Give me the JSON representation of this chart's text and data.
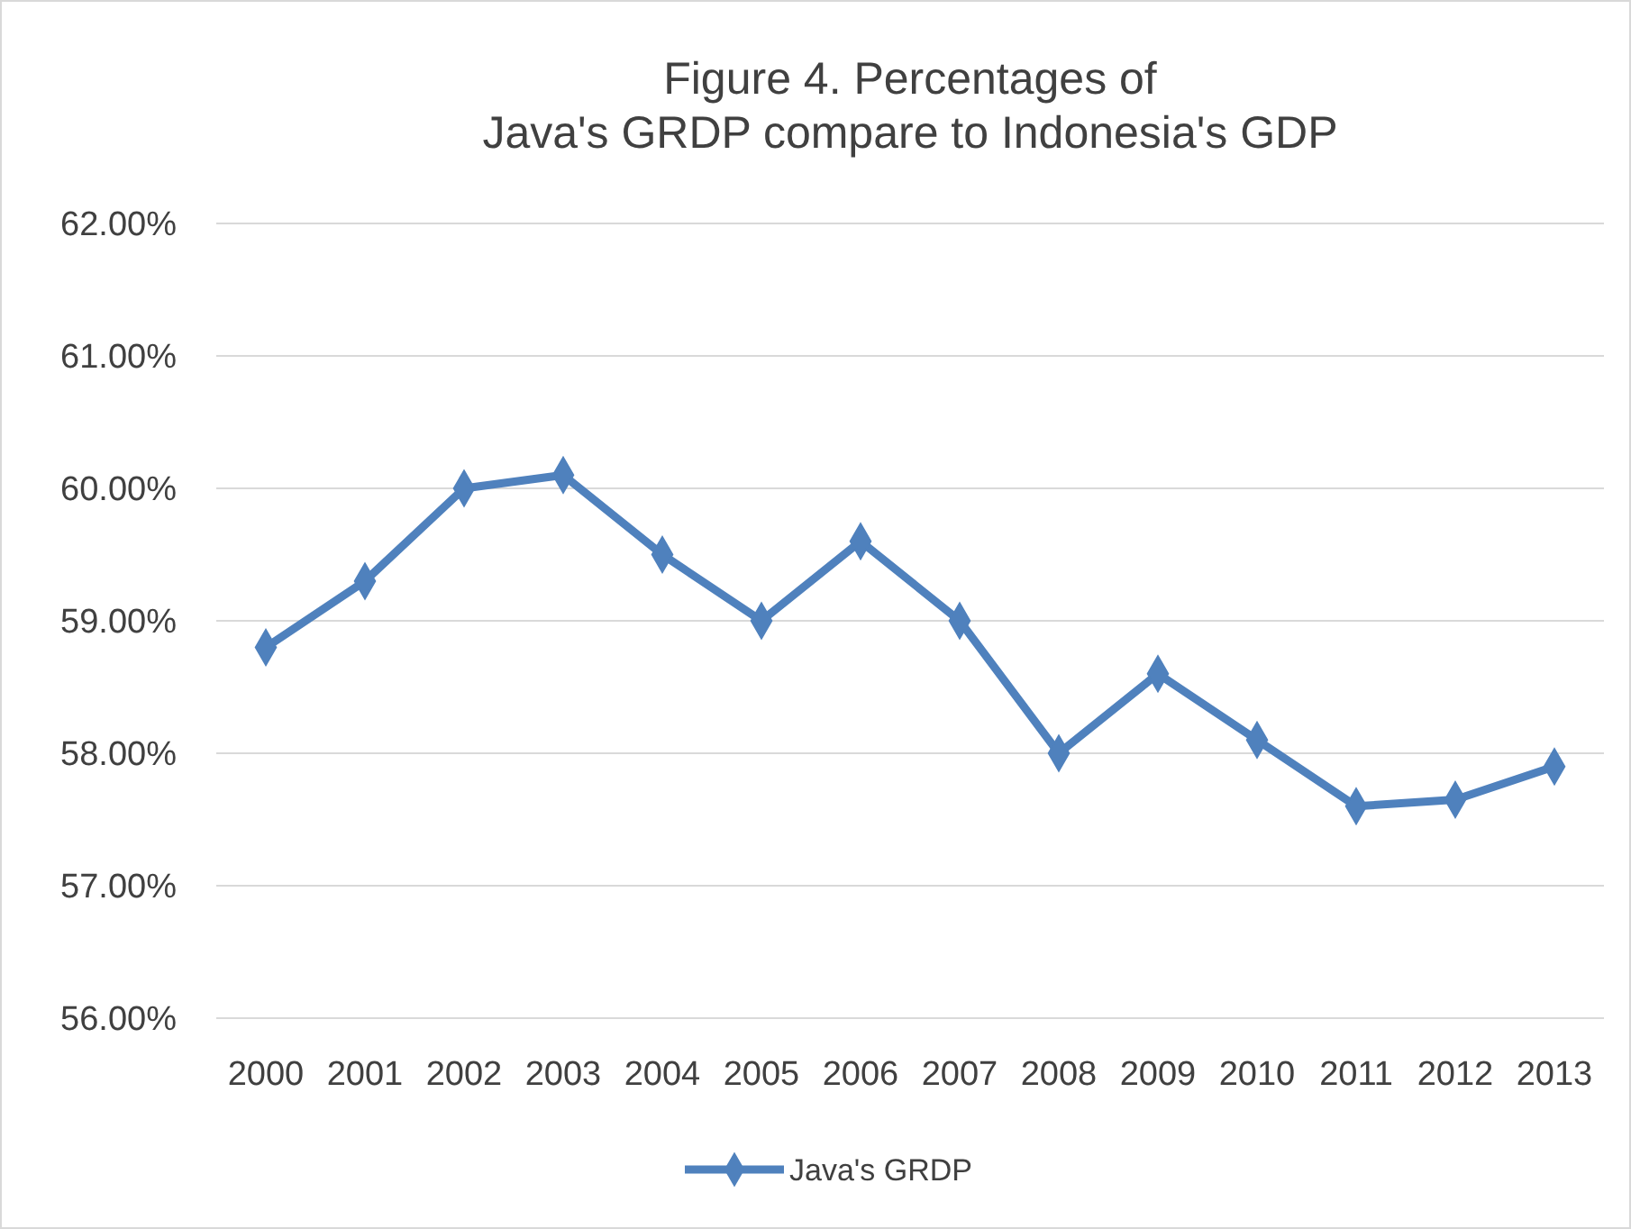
{
  "chart_data": {
    "type": "line",
    "title": "Figure 4. Percentages of\nJava's GRDP compare to Indonesia's GDP",
    "categories": [
      "2000",
      "2001",
      "2002",
      "2003",
      "2004",
      "2005",
      "2006",
      "2007",
      "2008",
      "2009",
      "2010",
      "2011",
      "2012",
      "2013"
    ],
    "series": [
      {
        "name": "Java's GRDP",
        "color": "#4f81bd",
        "values": [
          58.8,
          59.3,
          60.0,
          60.1,
          59.5,
          59.0,
          59.6,
          59.0,
          58.0,
          58.6,
          58.1,
          57.6,
          57.65,
          57.9
        ]
      }
    ],
    "ylim": [
      56,
      62
    ],
    "yticks": [
      {
        "value": 56,
        "label": "56.00%"
      },
      {
        "value": 57,
        "label": "57.00%"
      },
      {
        "value": 58,
        "label": "58.00%"
      },
      {
        "value": 59,
        "label": "59.00%"
      },
      {
        "value": 60,
        "label": "60.00%"
      },
      {
        "value": 61,
        "label": "61.00%"
      },
      {
        "value": 62,
        "label": "62.00%"
      }
    ],
    "grid": "y",
    "legend": "bottom",
    "marker": "diamond",
    "line_style": "solid"
  }
}
